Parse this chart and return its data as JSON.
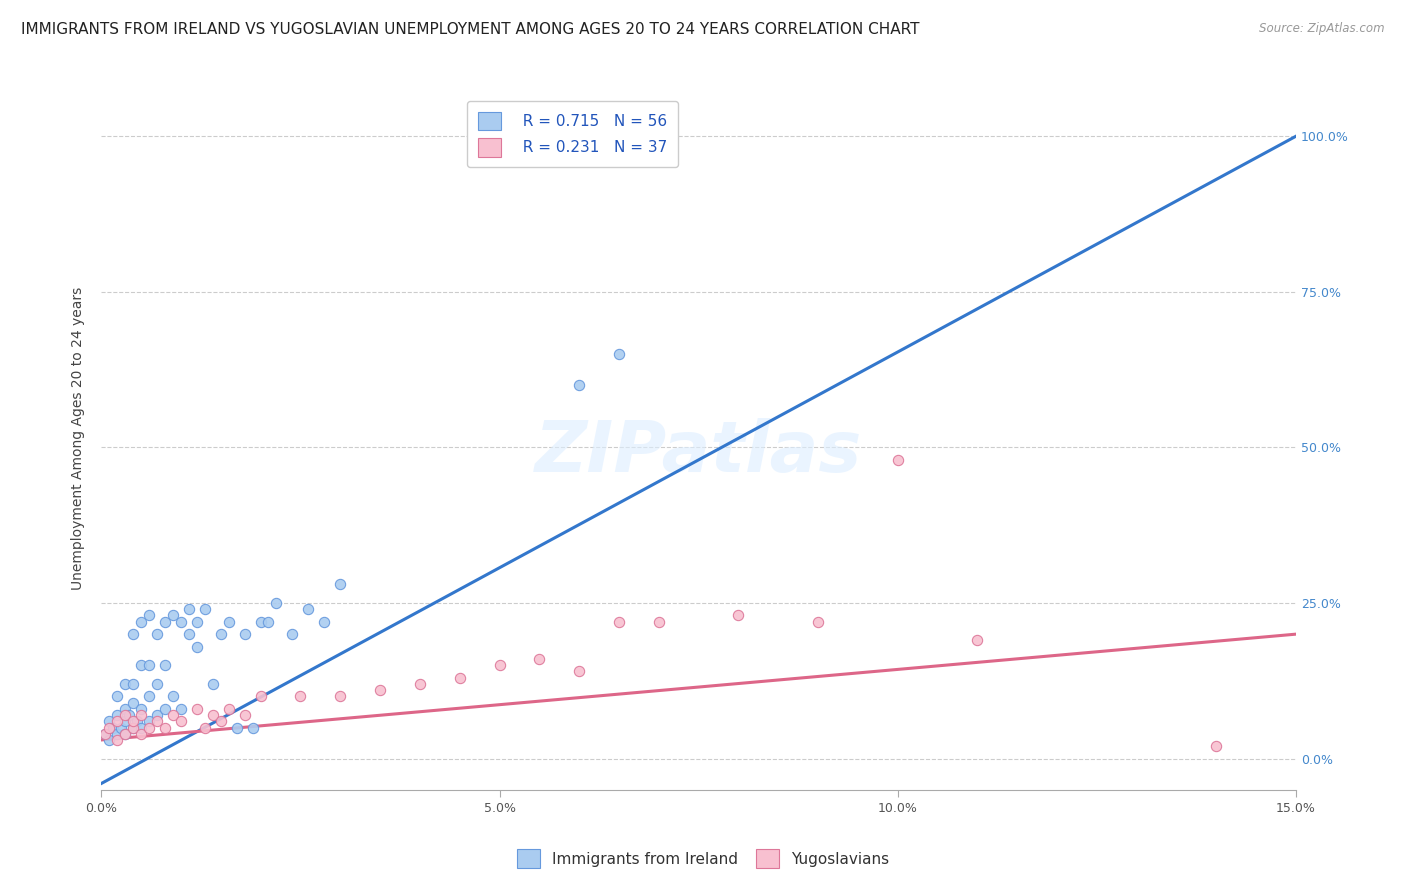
{
  "title": "IMMIGRANTS FROM IRELAND VS YUGOSLAVIAN UNEMPLOYMENT AMONG AGES 20 TO 24 YEARS CORRELATION CHART",
  "source": "Source: ZipAtlas.com",
  "ylabel": "Unemployment Among Ages 20 to 24 years",
  "xlim": [
    0.0,
    0.15
  ],
  "ylim": [
    -0.05,
    1.08
  ],
  "x_ticks": [
    0.0,
    0.05,
    0.1,
    0.15
  ],
  "x_tick_labels": [
    "0.0%",
    "5.0%",
    "10.0%",
    "15.0%"
  ],
  "y_ticks": [
    0.0,
    0.25,
    0.5,
    0.75,
    1.0
  ],
  "y_tick_labels_right": [
    "0.0%",
    "25.0%",
    "50.0%",
    "75.0%",
    "100.0%"
  ],
  "ireland_color": "#aaccf0",
  "ireland_edge_color": "#6699dd",
  "yugo_color": "#f8c0d0",
  "yugo_edge_color": "#dd7799",
  "ireland_line_color": "#3377cc",
  "yugo_line_color": "#dd6688",
  "R_ireland": 0.715,
  "N_ireland": 56,
  "R_yugo": 0.231,
  "N_yugo": 37,
  "legend_color": "#2255bb",
  "right_axis_color": "#4488cc",
  "watermark_text": "ZIPatlas",
  "ireland_scatter_x": [
    0.0005,
    0.001,
    0.001,
    0.0015,
    0.002,
    0.002,
    0.002,
    0.0025,
    0.003,
    0.003,
    0.003,
    0.003,
    0.0035,
    0.004,
    0.004,
    0.004,
    0.004,
    0.0045,
    0.005,
    0.005,
    0.005,
    0.005,
    0.006,
    0.006,
    0.006,
    0.006,
    0.007,
    0.007,
    0.007,
    0.008,
    0.008,
    0.008,
    0.009,
    0.009,
    0.01,
    0.01,
    0.011,
    0.011,
    0.012,
    0.012,
    0.013,
    0.014,
    0.015,
    0.016,
    0.017,
    0.018,
    0.019,
    0.02,
    0.021,
    0.022,
    0.024,
    0.026,
    0.028,
    0.03,
    0.06,
    0.065
  ],
  "ireland_scatter_y": [
    0.04,
    0.03,
    0.06,
    0.05,
    0.04,
    0.07,
    0.1,
    0.05,
    0.04,
    0.06,
    0.08,
    0.12,
    0.07,
    0.05,
    0.09,
    0.12,
    0.2,
    0.06,
    0.05,
    0.08,
    0.15,
    0.22,
    0.06,
    0.1,
    0.15,
    0.23,
    0.07,
    0.12,
    0.2,
    0.08,
    0.15,
    0.22,
    0.1,
    0.23,
    0.08,
    0.22,
    0.2,
    0.24,
    0.18,
    0.22,
    0.24,
    0.12,
    0.2,
    0.22,
    0.05,
    0.2,
    0.05,
    0.22,
    0.22,
    0.25,
    0.2,
    0.24,
    0.22,
    0.28,
    0.6,
    0.65
  ],
  "yugo_scatter_x": [
    0.0005,
    0.001,
    0.002,
    0.002,
    0.003,
    0.003,
    0.004,
    0.004,
    0.005,
    0.005,
    0.006,
    0.007,
    0.008,
    0.009,
    0.01,
    0.012,
    0.013,
    0.014,
    0.015,
    0.016,
    0.018,
    0.02,
    0.025,
    0.03,
    0.035,
    0.04,
    0.045,
    0.05,
    0.055,
    0.06,
    0.065,
    0.07,
    0.08,
    0.09,
    0.1,
    0.11,
    0.14
  ],
  "yugo_scatter_y": [
    0.04,
    0.05,
    0.03,
    0.06,
    0.04,
    0.07,
    0.05,
    0.06,
    0.04,
    0.07,
    0.05,
    0.06,
    0.05,
    0.07,
    0.06,
    0.08,
    0.05,
    0.07,
    0.06,
    0.08,
    0.07,
    0.1,
    0.1,
    0.1,
    0.11,
    0.12,
    0.13,
    0.15,
    0.16,
    0.14,
    0.22,
    0.22,
    0.23,
    0.22,
    0.48,
    0.19,
    0.02
  ],
  "ireland_line_x": [
    0.0,
    0.15
  ],
  "ireland_line_y": [
    -0.04,
    1.0
  ],
  "yugo_line_x": [
    0.0,
    0.15
  ],
  "yugo_line_y": [
    0.03,
    0.2
  ],
  "bg_color": "#ffffff",
  "grid_color": "#cccccc",
  "title_fontsize": 11,
  "axis_label_fontsize": 10,
  "tick_fontsize": 9,
  "legend_fontsize": 11,
  "marker_size": 55
}
